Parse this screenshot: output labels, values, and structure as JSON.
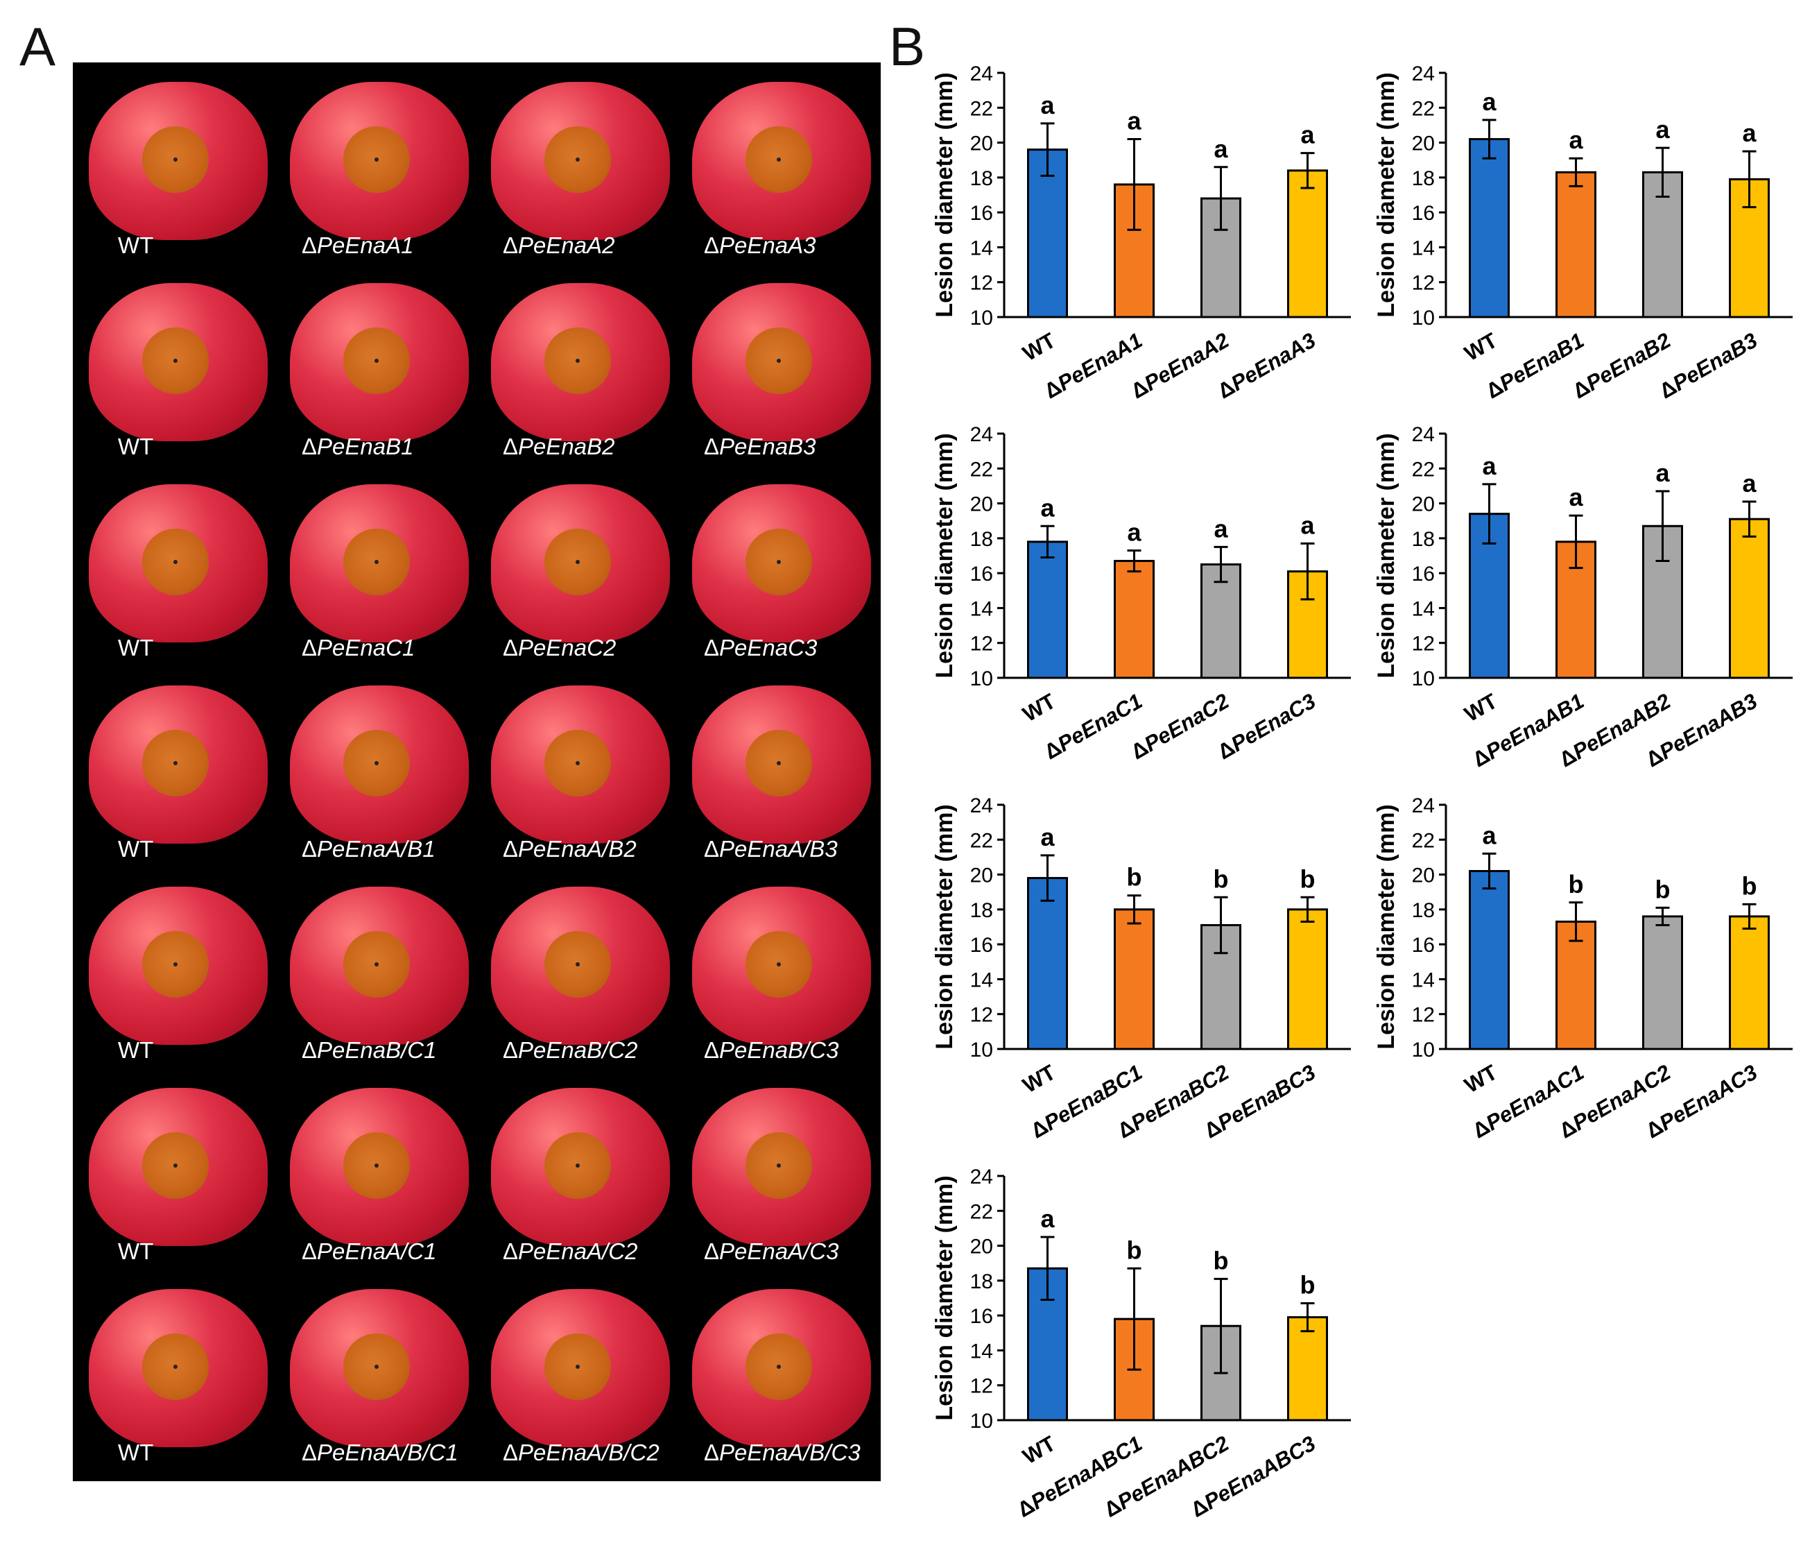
{
  "panel_letters": {
    "a": "A",
    "b": "B"
  },
  "photo_panel": {
    "rows": [
      {
        "labels": [
          "WT",
          "ΔPeEnaA1",
          "ΔPeEnaA2",
          "ΔPeEnaA3"
        ]
      },
      {
        "labels": [
          "WT",
          "ΔPeEnaB1",
          "ΔPeEnaB2",
          "ΔPeEnaB3"
        ]
      },
      {
        "labels": [
          "WT",
          "ΔPeEnaC1",
          "ΔPeEnaC2",
          "ΔPeEnaC3"
        ]
      },
      {
        "labels": [
          "WT",
          "ΔPeEnaA/B1",
          "ΔPeEnaA/B2",
          "ΔPeEnaA/B3"
        ]
      },
      {
        "labels": [
          "WT",
          "ΔPeEnaB/C1",
          "ΔPeEnaB/C2",
          "ΔPeEnaB/C3"
        ]
      },
      {
        "labels": [
          "WT",
          "ΔPeEnaA/C1",
          "ΔPeEnaA/C2",
          "ΔPeEnaA/C3"
        ]
      },
      {
        "labels": [
          "WT",
          "ΔPeEnaA/B/C1",
          "ΔPeEnaA/B/C2",
          "ΔPeEnaA/B/C3"
        ]
      }
    ]
  },
  "colors": {
    "wt": "#1f6fc9",
    "s1": "#f47a20",
    "s2": "#a6a6a6",
    "s3": "#ffc000"
  },
  "chart_data": [
    {
      "type": "bar",
      "ylabel": "Lesion diameter (mm)",
      "ylim": [
        10,
        24
      ],
      "yticks": [
        10,
        12,
        14,
        16,
        18,
        20,
        22,
        24
      ],
      "categories": [
        "WT",
        "ΔPeEnaA1",
        "ΔPeEnaA2",
        "ΔPeEnaA3"
      ],
      "values": [
        19.6,
        17.6,
        16.8,
        18.4
      ],
      "errors": [
        1.5,
        2.6,
        1.8,
        1.0
      ],
      "letters": [
        "a",
        "a",
        "a",
        "a"
      ]
    },
    {
      "type": "bar",
      "ylabel": "Lesion diameter (mm)",
      "ylim": [
        10,
        24
      ],
      "yticks": [
        10,
        12,
        14,
        16,
        18,
        20,
        22,
        24
      ],
      "categories": [
        "WT",
        "ΔPeEnaB1",
        "ΔPeEnaB2",
        "ΔPeEnaB3"
      ],
      "values": [
        20.2,
        18.3,
        18.3,
        17.9
      ],
      "errors": [
        1.1,
        0.8,
        1.4,
        1.6
      ],
      "letters": [
        "a",
        "a",
        "a",
        "a"
      ]
    },
    {
      "type": "bar",
      "ylabel": "Lesion diameter (mm)",
      "ylim": [
        10,
        24
      ],
      "yticks": [
        10,
        12,
        14,
        16,
        18,
        20,
        22,
        24
      ],
      "categories": [
        "WT",
        "ΔPeEnaC1",
        "ΔPeEnaC2",
        "ΔPeEnaC3"
      ],
      "values": [
        17.8,
        16.7,
        16.5,
        16.1
      ],
      "errors": [
        0.9,
        0.6,
        1.0,
        1.6
      ],
      "letters": [
        "a",
        "a",
        "a",
        "a"
      ]
    },
    {
      "type": "bar",
      "ylabel": "Lesion diameter (mm)",
      "ylim": [
        10,
        24
      ],
      "yticks": [
        10,
        12,
        14,
        16,
        18,
        20,
        22,
        24
      ],
      "categories": [
        "WT",
        "ΔPeEnaAB1",
        "ΔPeEnaAB2",
        "ΔPeEnaAB3"
      ],
      "values": [
        19.4,
        17.8,
        18.7,
        19.1
      ],
      "errors": [
        1.7,
        1.5,
        2.0,
        1.0
      ],
      "letters": [
        "a",
        "a",
        "a",
        "a"
      ]
    },
    {
      "type": "bar",
      "ylabel": "Lesion diameter (mm)",
      "ylim": [
        10,
        24
      ],
      "yticks": [
        10,
        12,
        14,
        16,
        18,
        20,
        22,
        24
      ],
      "categories": [
        "WT",
        "ΔPeEnaBC1",
        "ΔPeEnaBC2",
        "ΔPeEnaBC3"
      ],
      "values": [
        19.8,
        18.0,
        17.1,
        18.0
      ],
      "errors": [
        1.3,
        0.8,
        1.6,
        0.7
      ],
      "letters": [
        "a",
        "b",
        "b",
        "b"
      ]
    },
    {
      "type": "bar",
      "ylabel": "Lesion diameter (mm)",
      "ylim": [
        10,
        24
      ],
      "yticks": [
        10,
        12,
        14,
        16,
        18,
        20,
        22,
        24
      ],
      "categories": [
        "WT",
        "ΔPeEnaAC1",
        "ΔPeEnaAC2",
        "ΔPeEnaAC3"
      ],
      "values": [
        20.2,
        17.3,
        17.6,
        17.6
      ],
      "errors": [
        1.0,
        1.1,
        0.5,
        0.7
      ],
      "letters": [
        "a",
        "b",
        "b",
        "b"
      ]
    },
    {
      "type": "bar",
      "ylabel": "Lesion diameter (mm)",
      "ylim": [
        10,
        24
      ],
      "yticks": [
        10,
        12,
        14,
        16,
        18,
        20,
        22,
        24
      ],
      "categories": [
        "WT",
        "ΔPeEnaABC1",
        "ΔPeEnaABC2",
        "ΔPeEnaABC3"
      ],
      "values": [
        18.7,
        15.8,
        15.4,
        15.9
      ],
      "errors": [
        1.8,
        2.9,
        2.7,
        0.8
      ],
      "letters": [
        "a",
        "b",
        "b",
        "b"
      ]
    }
  ]
}
